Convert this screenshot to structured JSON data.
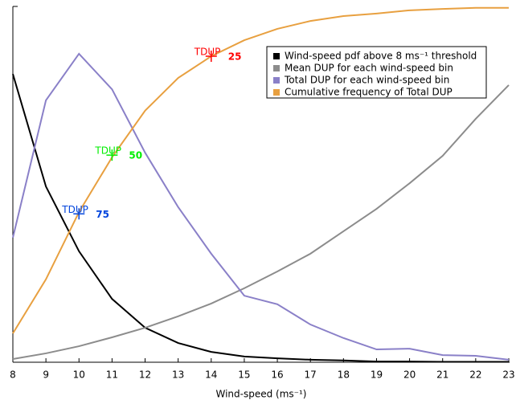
{
  "chart_data": {
    "type": "line",
    "x_label": "Wind-speed (ms⁻¹)",
    "x": [
      8,
      9,
      10,
      11,
      12,
      13,
      14,
      15,
      16,
      17,
      18,
      19,
      20,
      21,
      22,
      23
    ],
    "xlim": [
      8,
      23
    ],
    "xticks": [
      8,
      9,
      10,
      11,
      12,
      13,
      14,
      15,
      16,
      17,
      18,
      19,
      20,
      21,
      22,
      23
    ],
    "ylim": [
      0,
      1
    ],
    "legend": "upper right",
    "series": [
      {
        "name": "Wind-speed pdf above 8 ms⁻¹ threshold",
        "color": "#000000",
        "values": [
          0.81,
          0.494,
          0.312,
          0.178,
          0.097,
          0.054,
          0.029,
          0.016,
          0.011,
          0.007,
          0.005,
          0.002,
          0.002,
          0.001,
          0.001,
          0.001
        ]
      },
      {
        "name": "Mean DUP for each wind-speed bin",
        "color": "#8c8c8c",
        "values": [
          0.009,
          0.025,
          0.045,
          0.07,
          0.097,
          0.129,
          0.165,
          0.208,
          0.255,
          0.305,
          0.368,
          0.431,
          0.503,
          0.58,
          0.684,
          0.779
        ]
      },
      {
        "name": "Total DUP for each wind-speed bin",
        "color": "#8a80c8",
        "values": [
          0.35,
          0.736,
          0.867,
          0.767,
          0.589,
          0.436,
          0.305,
          0.187,
          0.163,
          0.106,
          0.068,
          0.036,
          0.038,
          0.02,
          0.018,
          0.007
        ]
      },
      {
        "name": "Cumulative frequency of Total DUP",
        "color": "#e8a040",
        "values": [
          0.081,
          0.233,
          0.422,
          0.576,
          0.707,
          0.799,
          0.86,
          0.905,
          0.937,
          0.959,
          0.973,
          0.98,
          0.989,
          0.993,
          0.996,
          0.996
        ]
      }
    ],
    "annotations": [
      {
        "text": "TDUP",
        "sub": "25",
        "color": "#ff0000",
        "x": 14,
        "y": 0.86
      },
      {
        "text": "TDUP",
        "sub": "50",
        "color": "#00ee00",
        "x": 11,
        "y": 0.582
      },
      {
        "text": "TDUP",
        "sub": "75",
        "color": "#0044dd",
        "x": 10,
        "y": 0.417
      }
    ]
  }
}
